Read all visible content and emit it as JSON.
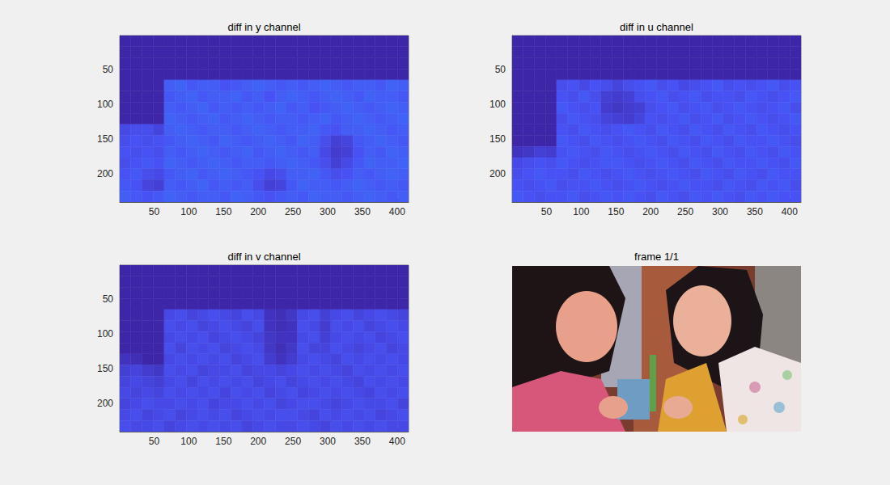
{
  "chart_data": [
    {
      "type": "heatmap",
      "title": "diff in y channel",
      "x_edges": [
        0.5,
        16.5,
        32.5,
        48.5,
        64.5,
        80.5,
        96.5,
        112.5,
        128.5,
        144.5,
        160.5,
        176.5,
        192.5,
        208.5,
        224.5,
        240.5,
        256.5,
        272.5,
        288.5,
        304.5,
        320.5,
        336.5,
        352.5,
        368.5,
        384.5,
        400.5,
        416.5
      ],
      "y_edges": [
        0.5,
        16.5,
        32.5,
        48.5,
        64.5,
        80.5,
        96.5,
        112.5,
        128.5,
        144.5,
        160.5,
        176.5,
        192.5,
        208.5,
        224.5,
        240.5
      ],
      "z": [
        [
          0,
          0,
          0,
          0,
          0,
          0,
          0,
          0,
          0,
          0,
          0,
          0,
          0,
          0,
          0,
          0,
          0,
          0,
          0,
          0,
          0,
          0,
          0,
          0,
          0,
          0
        ],
        [
          0,
          0,
          0,
          0,
          0,
          0,
          0,
          0,
          0,
          0,
          0,
          0,
          0,
          0,
          0,
          0,
          0,
          0,
          0,
          0,
          0,
          0,
          0,
          0,
          0,
          0
        ],
        [
          0,
          0,
          0,
          0,
          0,
          0,
          0,
          0,
          0,
          0,
          0,
          0,
          0,
          0,
          0,
          0,
          0,
          0,
          0,
          0,
          0,
          0,
          0,
          0,
          0,
          0
        ],
        [
          0,
          0,
          0,
          0,
          0,
          0,
          0,
          0,
          0,
          0,
          0,
          0,
          0,
          0,
          0,
          0,
          0,
          0,
          0,
          0,
          0,
          0,
          0,
          0,
          0,
          0
        ],
        [
          0,
          0,
          0,
          0,
          12,
          13,
          11,
          12,
          12,
          10,
          11,
          12,
          13,
          12,
          11,
          12,
          11,
          12,
          13,
          12,
          11,
          12,
          12,
          11,
          13,
          12
        ],
        [
          0,
          0,
          0,
          0,
          11,
          12,
          13,
          11,
          12,
          12,
          13,
          11,
          12,
          10,
          12,
          13,
          12,
          11,
          12,
          13,
          12,
          11,
          13,
          12,
          12,
          11
        ],
        [
          0,
          0,
          0,
          0,
          12,
          11,
          12,
          13,
          11,
          12,
          11,
          12,
          11,
          12,
          13,
          11,
          12,
          10,
          11,
          12,
          13,
          12,
          11,
          12,
          13,
          12
        ],
        [
          0,
          0,
          0,
          0,
          13,
          12,
          11,
          12,
          13,
          11,
          12,
          13,
          12,
          11,
          12,
          12,
          11,
          12,
          13,
          11,
          12,
          13,
          12,
          11,
          12,
          13
        ],
        [
          8,
          9,
          9,
          7,
          12,
          13,
          12,
          11,
          12,
          12,
          11,
          12,
          13,
          12,
          11,
          12,
          12,
          13,
          11,
          10,
          12,
          12,
          13,
          12,
          11,
          12
        ],
        [
          9,
          10,
          9,
          10,
          11,
          12,
          13,
          12,
          11,
          13,
          12,
          11,
          12,
          13,
          12,
          11,
          13,
          12,
          9,
          6,
          7,
          11,
          12,
          13,
          12,
          11
        ],
        [
          10,
          9,
          10,
          9,
          12,
          11,
          12,
          13,
          12,
          11,
          12,
          13,
          11,
          12,
          13,
          12,
          11,
          12,
          8,
          5,
          6,
          10,
          12,
          11,
          13,
          12
        ],
        [
          9,
          10,
          11,
          10,
          13,
          12,
          11,
          12,
          13,
          12,
          11,
          12,
          12,
          11,
          12,
          13,
          12,
          11,
          9,
          6,
          8,
          11,
          13,
          12,
          12,
          13
        ],
        [
          10,
          11,
          9,
          8,
          11,
          12,
          13,
          11,
          12,
          13,
          12,
          11,
          10,
          8,
          9,
          12,
          12,
          13,
          11,
          9,
          10,
          12,
          11,
          12,
          13,
          12
        ],
        [
          11,
          10,
          7,
          6,
          12,
          11,
          12,
          13,
          11,
          12,
          11,
          12,
          9,
          6,
          7,
          11,
          13,
          12,
          12,
          11,
          12,
          13,
          12,
          11,
          12,
          11
        ],
        [
          12,
          11,
          10,
          11,
          13,
          12,
          11,
          12,
          12,
          11,
          13,
          12,
          11,
          10,
          11,
          12,
          11,
          13,
          12,
          12,
          11,
          12,
          13,
          12,
          11,
          12
        ]
      ],
      "clim": [
        0,
        100
      ],
      "xlim": [
        0.5,
        416.5
      ],
      "ylim": [
        0.5,
        240.5
      ],
      "xticks": [
        50,
        100,
        150,
        200,
        250,
        300,
        350,
        400
      ],
      "yticks": [
        50,
        100,
        150,
        200
      ]
    },
    {
      "type": "heatmap",
      "title": "diff in u channel",
      "x_edges": [
        0.5,
        16.5,
        32.5,
        48.5,
        64.5,
        80.5,
        96.5,
        112.5,
        128.5,
        144.5,
        160.5,
        176.5,
        192.5,
        208.5,
        224.5,
        240.5,
        256.5,
        272.5,
        288.5,
        304.5,
        320.5,
        336.5,
        352.5,
        368.5,
        384.5,
        400.5,
        416.5
      ],
      "y_edges": [
        0.5,
        16.5,
        32.5,
        48.5,
        64.5,
        80.5,
        96.5,
        112.5,
        128.5,
        144.5,
        160.5,
        176.5,
        192.5,
        208.5,
        224.5,
        240.5
      ],
      "z": [
        [
          0,
          0,
          0,
          0,
          0,
          0,
          0,
          0,
          0,
          0,
          0,
          0,
          0,
          0,
          0,
          0,
          0,
          0,
          0,
          0,
          0,
          0,
          0,
          0,
          0,
          0
        ],
        [
          0,
          0,
          0,
          0,
          0,
          0,
          0,
          0,
          0,
          0,
          0,
          0,
          0,
          0,
          0,
          0,
          0,
          0,
          0,
          0,
          0,
          0,
          0,
          0,
          0,
          0
        ],
        [
          0,
          0,
          0,
          0,
          0,
          0,
          0,
          0,
          0,
          0,
          0,
          0,
          0,
          0,
          0,
          0,
          0,
          0,
          0,
          0,
          0,
          0,
          0,
          0,
          0,
          0
        ],
        [
          0,
          0,
          0,
          0,
          0,
          0,
          0,
          0,
          0,
          0,
          0,
          0,
          0,
          0,
          0,
          0,
          0,
          0,
          0,
          0,
          0,
          0,
          0,
          0,
          0,
          0
        ],
        [
          0,
          0,
          0,
          0,
          9,
          10,
          8,
          10,
          9,
          7,
          9,
          10,
          11,
          9,
          10,
          8,
          9,
          10,
          11,
          9,
          10,
          9,
          10,
          11,
          9,
          10
        ],
        [
          0,
          0,
          0,
          0,
          10,
          9,
          11,
          9,
          6,
          5,
          6,
          9,
          10,
          11,
          9,
          10,
          11,
          9,
          10,
          10,
          9,
          11,
          10,
          9,
          10,
          11
        ],
        [
          0,
          0,
          0,
          0,
          11,
          10,
          9,
          10,
          5,
          4,
          5,
          6,
          9,
          10,
          11,
          9,
          10,
          11,
          9,
          10,
          11,
          10,
          9,
          10,
          11,
          9
        ],
        [
          0,
          0,
          0,
          0,
          9,
          11,
          10,
          9,
          7,
          6,
          5,
          7,
          10,
          9,
          10,
          11,
          9,
          10,
          11,
          9,
          10,
          11,
          10,
          9,
          10,
          11
        ],
        [
          0,
          0,
          0,
          0,
          10,
          9,
          11,
          10,
          9,
          10,
          11,
          10,
          9,
          11,
          10,
          9,
          11,
          10,
          9,
          11,
          10,
          9,
          11,
          10,
          9,
          10
        ],
        [
          0,
          0,
          0,
          0,
          11,
          10,
          9,
          11,
          10,
          9,
          10,
          11,
          10,
          9,
          11,
          10,
          9,
          11,
          10,
          9,
          11,
          10,
          10,
          11,
          10,
          9
        ],
        [
          3,
          4,
          6,
          5,
          10,
          11,
          10,
          9,
          11,
          10,
          9,
          10,
          11,
          10,
          9,
          11,
          10,
          9,
          11,
          10,
          9,
          11,
          10,
          9,
          11,
          10
        ],
        [
          8,
          9,
          10,
          9,
          11,
          10,
          9,
          10,
          11,
          11,
          10,
          9,
          10,
          11,
          10,
          9,
          11,
          10,
          9,
          11,
          10,
          10,
          11,
          10,
          9,
          11
        ],
        [
          9,
          10,
          11,
          10,
          10,
          9,
          11,
          10,
          9,
          10,
          11,
          10,
          9,
          10,
          11,
          10,
          9,
          11,
          10,
          9,
          11,
          10,
          9,
          11,
          10,
          10
        ],
        [
          10,
          9,
          10,
          11,
          9,
          10,
          10,
          11,
          10,
          9,
          10,
          11,
          10,
          9,
          10,
          11,
          10,
          10,
          9,
          11,
          10,
          9,
          11,
          10,
          11,
          9
        ],
        [
          11,
          10,
          9,
          10,
          10,
          11,
          9,
          10,
          11,
          10,
          11,
          10,
          9,
          11,
          10,
          9,
          11,
          10,
          11,
          10,
          9,
          11,
          10,
          11,
          10,
          10
        ]
      ],
      "clim": [
        0,
        100
      ],
      "xlim": [
        0.5,
        416.5
      ],
      "ylim": [
        0.5,
        240.5
      ],
      "xticks": [
        50,
        100,
        150,
        200,
        250,
        300,
        350,
        400
      ],
      "yticks": [
        50,
        100,
        150,
        200
      ]
    },
    {
      "type": "heatmap",
      "title": "diff in v channel",
      "x_edges": [
        0.5,
        16.5,
        32.5,
        48.5,
        64.5,
        80.5,
        96.5,
        112.5,
        128.5,
        144.5,
        160.5,
        176.5,
        192.5,
        208.5,
        224.5,
        240.5,
        256.5,
        272.5,
        288.5,
        304.5,
        320.5,
        336.5,
        352.5,
        368.5,
        384.5,
        400.5,
        416.5
      ],
      "y_edges": [
        0.5,
        16.5,
        32.5,
        48.5,
        64.5,
        80.5,
        96.5,
        112.5,
        128.5,
        144.5,
        160.5,
        176.5,
        192.5,
        208.5,
        224.5,
        240.5
      ],
      "z": [
        [
          0,
          0,
          0,
          0,
          0,
          0,
          0,
          0,
          0,
          0,
          0,
          0,
          0,
          0,
          0,
          0,
          0,
          0,
          0,
          0,
          0,
          0,
          0,
          0,
          0,
          0
        ],
        [
          0,
          0,
          0,
          0,
          0,
          0,
          0,
          0,
          0,
          0,
          0,
          0,
          0,
          0,
          0,
          0,
          0,
          0,
          0,
          0,
          0,
          0,
          0,
          0,
          0,
          0
        ],
        [
          0,
          0,
          0,
          0,
          0,
          0,
          0,
          0,
          0,
          0,
          0,
          0,
          0,
          0,
          0,
          0,
          0,
          0,
          0,
          0,
          0,
          0,
          0,
          0,
          0,
          0
        ],
        [
          0,
          0,
          0,
          0,
          0,
          0,
          0,
          0,
          0,
          0,
          0,
          0,
          0,
          0,
          0,
          0,
          0,
          0,
          0,
          0,
          0,
          0,
          0,
          0,
          0,
          0
        ],
        [
          0,
          0,
          0,
          0,
          8,
          9,
          7,
          8,
          9,
          8,
          7,
          9,
          8,
          3,
          2,
          4,
          8,
          9,
          6,
          8,
          9,
          7,
          8,
          9,
          8,
          7
        ],
        [
          0,
          0,
          0,
          0,
          9,
          8,
          9,
          7,
          8,
          9,
          8,
          7,
          9,
          3,
          2,
          3,
          9,
          8,
          5,
          9,
          8,
          9,
          7,
          8,
          9,
          8
        ],
        [
          0,
          0,
          0,
          0,
          8,
          9,
          8,
          9,
          7,
          8,
          9,
          8,
          7,
          4,
          3,
          3,
          8,
          9,
          6,
          8,
          9,
          8,
          9,
          7,
          8,
          9
        ],
        [
          0,
          0,
          0,
          0,
          9,
          7,
          9,
          8,
          9,
          7,
          8,
          9,
          8,
          4,
          2,
          4,
          9,
          7,
          7,
          9,
          8,
          7,
          8,
          9,
          7,
          8
        ],
        [
          3,
          2,
          0,
          0,
          8,
          9,
          8,
          9,
          8,
          9,
          7,
          8,
          9,
          5,
          3,
          5,
          8,
          9,
          8,
          7,
          9,
          8,
          9,
          8,
          9,
          8
        ],
        [
          6,
          7,
          5,
          4,
          9,
          8,
          9,
          7,
          8,
          8,
          9,
          7,
          8,
          8,
          7,
          8,
          9,
          8,
          9,
          8,
          7,
          9,
          8,
          9,
          8,
          9
        ],
        [
          7,
          8,
          7,
          6,
          8,
          9,
          7,
          9,
          8,
          9,
          8,
          9,
          7,
          8,
          9,
          7,
          8,
          9,
          8,
          9,
          8,
          7,
          9,
          8,
          9,
          8
        ],
        [
          8,
          7,
          8,
          7,
          9,
          8,
          9,
          8,
          9,
          7,
          9,
          8,
          9,
          7,
          8,
          9,
          7,
          8,
          9,
          8,
          9,
          8,
          7,
          9,
          8,
          9
        ],
        [
          7,
          8,
          9,
          8,
          8,
          9,
          8,
          9,
          7,
          8,
          8,
          9,
          8,
          9,
          7,
          8,
          9,
          9,
          8,
          7,
          8,
          9,
          8,
          8,
          9,
          7
        ],
        [
          8,
          9,
          7,
          8,
          9,
          7,
          8,
          9,
          8,
          9,
          7,
          8,
          9,
          8,
          9,
          9,
          8,
          7,
          9,
          8,
          9,
          8,
          9,
          7,
          8,
          9
        ],
        [
          9,
          8,
          8,
          9,
          7,
          8,
          9,
          8,
          9,
          8,
          9,
          7,
          8,
          9,
          8,
          8,
          9,
          8,
          7,
          9,
          8,
          9,
          8,
          9,
          8,
          8
        ]
      ],
      "clim": [
        0,
        100
      ],
      "xlim": [
        0.5,
        416.5
      ],
      "ylim": [
        0.5,
        240.5
      ],
      "xticks": [
        50,
        100,
        150,
        200,
        250,
        300,
        350,
        400
      ],
      "yticks": [
        50,
        100,
        150,
        200
      ]
    }
  ],
  "image": {
    "title": "frame 1/1"
  }
}
